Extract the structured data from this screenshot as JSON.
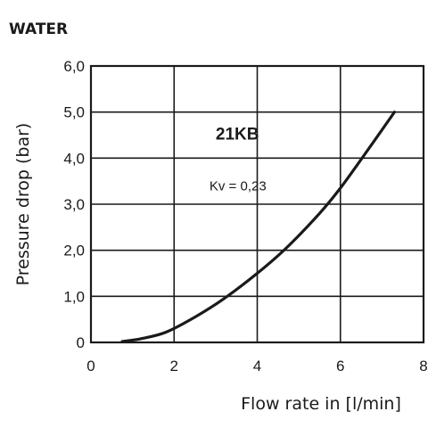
{
  "chart_data": {
    "type": "line",
    "title": "WATER",
    "xlabel": "Flow rate in [l/min]",
    "ylabel": "Pressure drop (bar)",
    "xlim": [
      0,
      8
    ],
    "ylim": [
      0,
      6
    ],
    "x_ticks": [
      {
        "value": 0,
        "label": "0"
      },
      {
        "value": 2,
        "label": "2"
      },
      {
        "value": 4,
        "label": "4"
      },
      {
        "value": 6,
        "label": "6"
      },
      {
        "value": 8,
        "label": "8"
      }
    ],
    "y_ticks": [
      {
        "value": 0,
        "label": "0"
      },
      {
        "value": 1,
        "label": "1,0"
      },
      {
        "value": 2,
        "label": "2,0"
      },
      {
        "value": 3,
        "label": "3,0"
      },
      {
        "value": 4,
        "label": "4,0"
      },
      {
        "value": 5,
        "label": "5,0"
      },
      {
        "value": 6,
        "label": "6,0"
      }
    ],
    "grid": true,
    "series": [
      {
        "name": "21KB",
        "color": "#1a1a1a",
        "x": [
          0.75,
          1.2,
          1.8,
          2.5,
          3.2,
          4.0,
          4.7,
          5.5,
          6.0,
          6.6,
          7.3
        ],
        "y": [
          0.02,
          0.08,
          0.22,
          0.55,
          0.95,
          1.5,
          2.05,
          2.8,
          3.35,
          4.1,
          5.0
        ]
      }
    ],
    "annotations": [
      {
        "text": "21KB",
        "x": 3.0,
        "y": 4.4
      },
      {
        "text": "Kv = 0,23",
        "x": 2.85,
        "y": 3.3
      }
    ]
  }
}
